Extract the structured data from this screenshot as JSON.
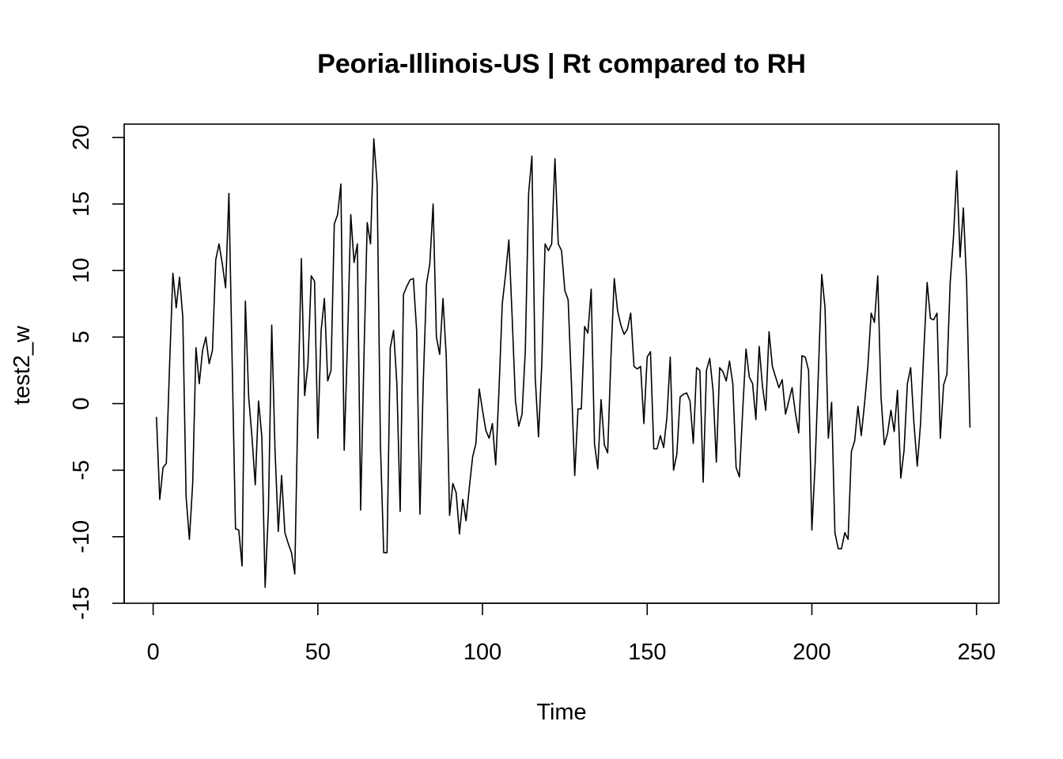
{
  "chart_data": {
    "type": "line",
    "title": "Peoria-Illinois-US | Rt compared to RH",
    "xlabel": "Time",
    "ylabel": "test2_w",
    "xlim": [
      -8.8,
      256.8
    ],
    "ylim": [
      -15,
      21
    ],
    "xticks": [
      0,
      50,
      100,
      150,
      200,
      250
    ],
    "yticks": [
      -15,
      -10,
      -5,
      0,
      5,
      10,
      15,
      20
    ],
    "grid": false,
    "legend": "none",
    "series_color": "#000000",
    "x_start": 1,
    "values": [
      -1,
      -7.2,
      -4.8,
      -4.5,
      3,
      9.8,
      7.2,
      9.5,
      6.5,
      -7,
      -10.2,
      -6,
      4.2,
      1.5,
      4,
      5,
      3,
      4,
      10.8,
      12,
      10.5,
      8.7,
      15.8,
      3,
      -9.4,
      -9.5,
      -12.2,
      7.7,
      0.5,
      -2.5,
      -6.1,
      0.2,
      -2.5,
      -13.8,
      -8,
      5.9,
      -3.5,
      -9.6,
      -5.4,
      -9.7,
      -10.5,
      -11.2,
      -12.8,
      0.6,
      10.9,
      0.6,
      3,
      9.6,
      9.2,
      -2.6,
      5.5,
      7.9,
      1.7,
      2.5,
      13.5,
      14.2,
      16.5,
      -3.5,
      4.5,
      14.2,
      10.6,
      12,
      -8,
      3.5,
      13.6,
      12,
      19.9,
      16.5,
      -3,
      -11.2,
      -11.2,
      4.2,
      5.5,
      1.5,
      -8.1,
      8.2,
      8.8,
      9.3,
      9.4,
      5.5,
      -8.3,
      1.5,
      9,
      10.5,
      15,
      5,
      3.7,
      7.9,
      3.5,
      -8.4,
      -6,
      -6.7,
      -9.8,
      -7.2,
      -8.8,
      -6.3,
      -4,
      -3,
      1.1,
      -0.5,
      -2,
      -2.6,
      -1.5,
      -4.6,
      1,
      7.5,
      9.7,
      12.3,
      6.5,
      0.2,
      -1.7,
      -0.8,
      4,
      15.8,
      18.6,
      2,
      -2.5,
      3,
      12,
      11.5,
      12,
      18.4,
      12,
      11.5,
      8.5,
      7.8,
      1.5,
      -5.4,
      -0.4,
      -0.4,
      5.8,
      5.3,
      8.6,
      -3,
      -4.9,
      0.3,
      -3.1,
      -3.7,
      3.5,
      9.4,
      7,
      5.9,
      5.2,
      5.6,
      6.8,
      2.8,
      2.6,
      2.8,
      -1.5,
      3.5,
      3.9,
      -3.4,
      -3.4,
      -2.4,
      -3.3,
      -1,
      3.5,
      -5,
      -3.8,
      0.5,
      0.7,
      0.8,
      0.2,
      -3,
      2.7,
      2.5,
      -5.9,
      2.5,
      3.4,
      1,
      -4.4,
      2.7,
      2.4,
      1.7,
      3.2,
      1.5,
      -4.8,
      -5.5,
      -0.5,
      4.1,
      2,
      1.5,
      -1.2,
      4.3,
      1.3,
      -0.5,
      5.4,
      2.8,
      2,
      1.2,
      1.8,
      -0.8,
      0.2,
      1.2,
      -0.7,
      -2.2,
      3.6,
      3.5,
      2.5,
      -9.5,
      -4.5,
      2.5,
      9.7,
      7.2,
      -2.6,
      0.1,
      -9.7,
      -10.9,
      -10.9,
      -9.7,
      -10.2,
      -3.6,
      -2.8,
      -0.2,
      -2.4,
      0,
      2.8,
      6.8,
      6.1,
      9.6,
      0.5,
      -3.1,
      -2.2,
      -0.5,
      -2.1,
      1,
      -5.6,
      -3.5,
      1.5,
      2.7,
      -1.5,
      -4.7,
      -1.5,
      4,
      9.1,
      6.4,
      6.3,
      6.8,
      -2.6,
      1.4,
      2.2,
      9.1,
      12.5,
      17.5,
      11,
      14.7,
      9,
      -1.8
    ]
  }
}
